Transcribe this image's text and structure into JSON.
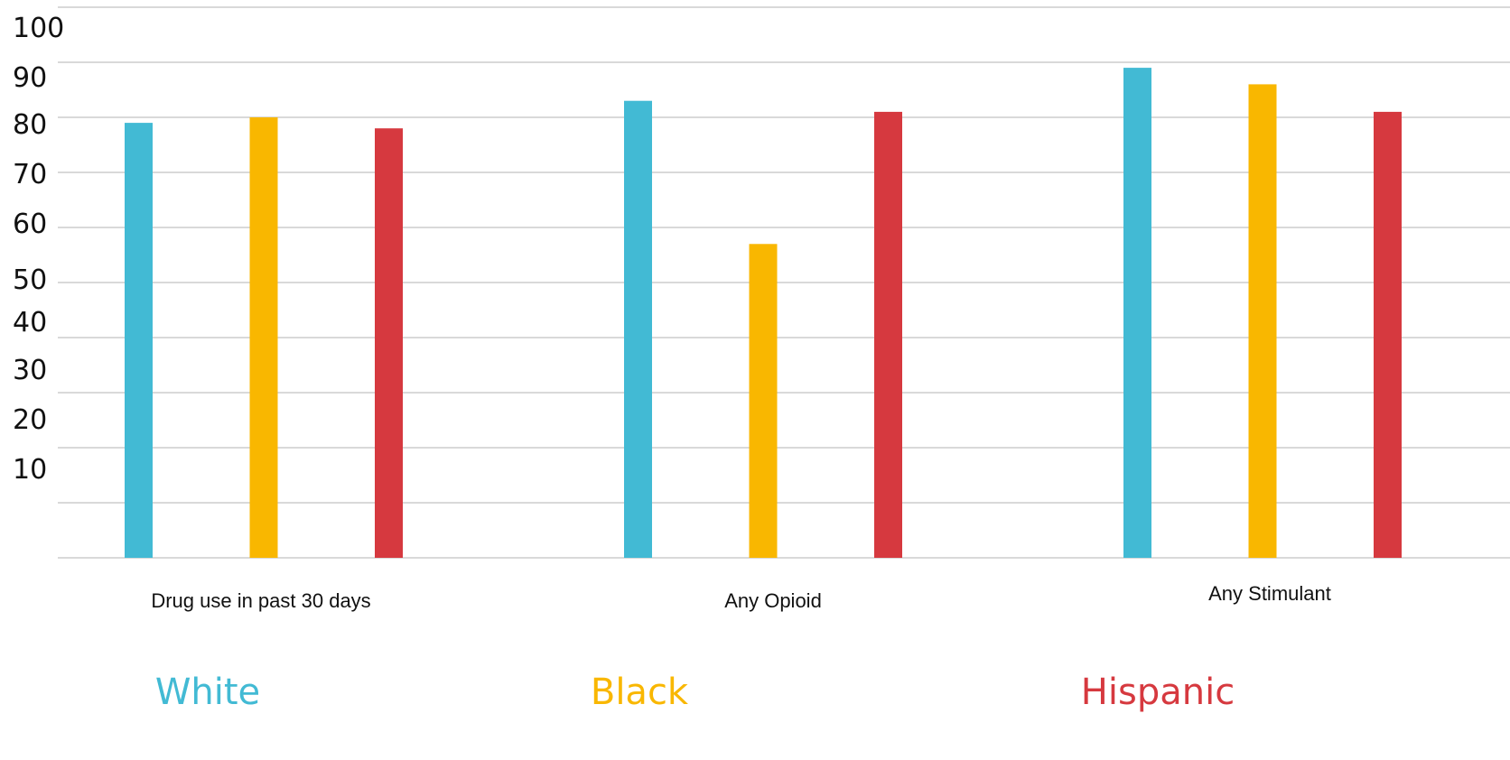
{
  "chart_data": {
    "type": "bar",
    "title": "",
    "xlabel": "",
    "ylabel": "",
    "ylim": [
      0,
      100
    ],
    "yticks": [
      "10",
      "20",
      "30",
      "40",
      "50",
      "60",
      "70",
      "80",
      "90",
      "100"
    ],
    "categories": [
      "Drug use in past 30 days",
      "Any Opioid",
      "Any Stimulant"
    ],
    "series": [
      {
        "name": "White",
        "color": "#42BAD4",
        "values": [
          79,
          83,
          89
        ]
      },
      {
        "name": "Black",
        "color": "#F9B700",
        "values": [
          80,
          57,
          86
        ]
      },
      {
        "name": "Hispanic",
        "color": "#D6393F",
        "values": [
          78,
          81,
          81
        ]
      }
    ],
    "grid": true,
    "legend_position": "bottom"
  }
}
